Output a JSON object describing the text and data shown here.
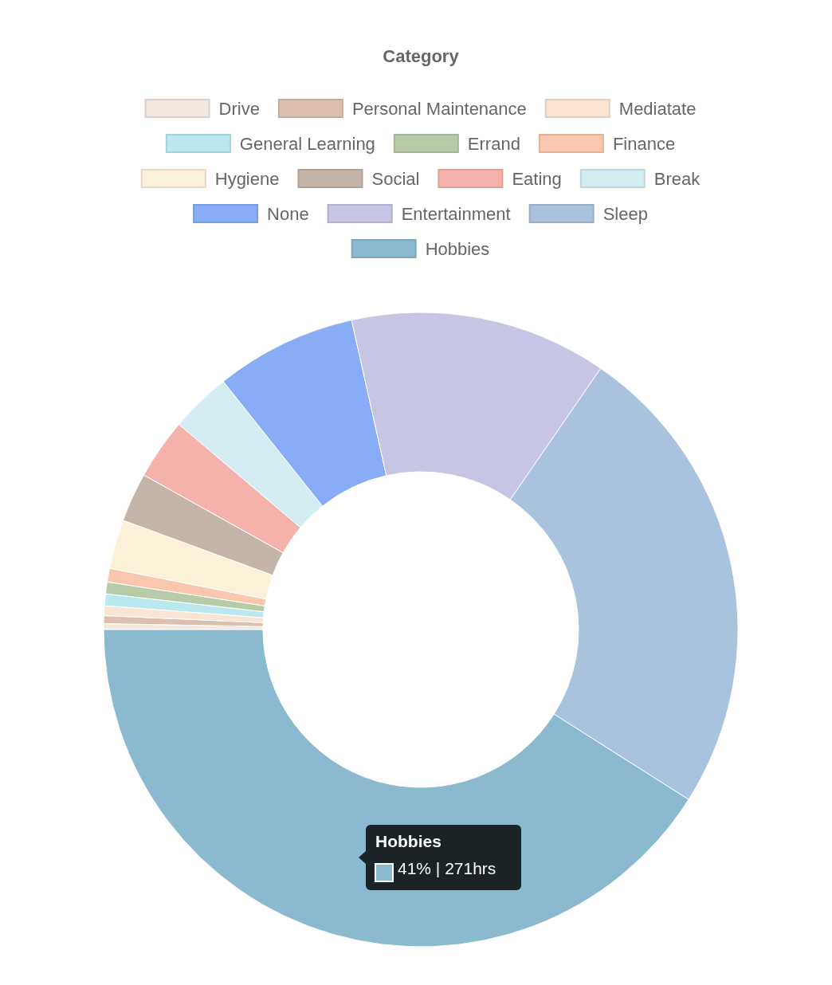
{
  "chart_data": {
    "type": "donut",
    "legend_title": "Category",
    "legend": "top",
    "categories": [
      "Drive",
      "Personal Maintenance",
      "Mediatate",
      "General Learning",
      "Errand",
      "Finance",
      "Hygiene",
      "Social",
      "Eating",
      "Break",
      "None",
      "Entertainment",
      "Sleep",
      "Hobbies"
    ],
    "values": [
      0.3,
      0.4,
      0.5,
      0.6,
      0.6,
      0.7,
      2.5,
      2.5,
      3.1,
      3.1,
      7.2,
      13.1,
      24.4,
      41
    ],
    "colors": [
      "#f3e8e0",
      "#dcbfae",
      "#fce4d4",
      "#b9e8ee",
      "#b8cba8",
      "#f8c7ad",
      "#fbf1d8",
      "#c4b4aa",
      "#f4b2aa",
      "#d3edf2",
      "#88acf6",
      "#c6c5e3",
      "#a9c2de",
      "#8bb9cf"
    ],
    "annotations": [
      "Hobbies",
      "41% | 271hrs"
    ]
  }
}
